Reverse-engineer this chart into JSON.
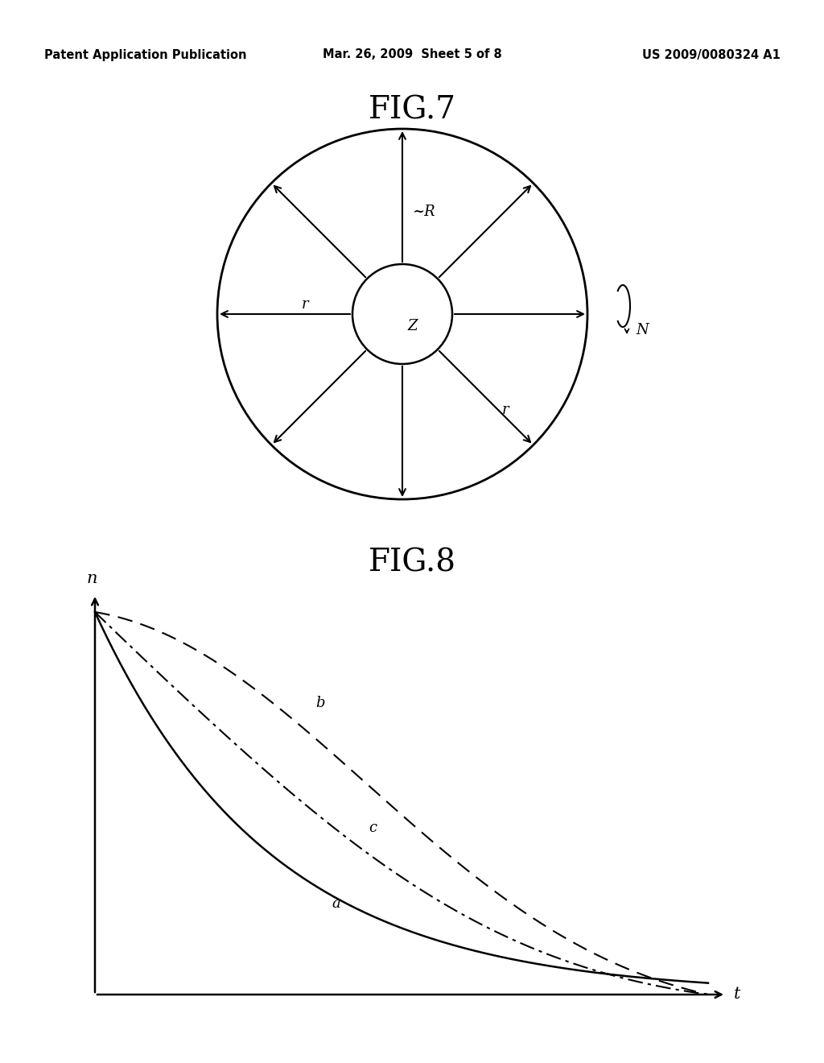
{
  "bg_color": "#ffffff",
  "header_left": "Patent Application Publication",
  "header_mid": "Mar. 26, 2009  Sheet 5 of 8",
  "header_right": "US 2009/0080324 A1",
  "fig7_title": "FIG.7",
  "fig8_title": "FIG.8",
  "fig7_label_Z": "Z",
  "fig7_label_R": "~R",
  "fig7_label_r1": "r",
  "fig7_label_r2": "r",
  "fig7_label_N": "N",
  "fig8_xlabel": "t",
  "fig8_ylabel": "n",
  "fig8_label_a": "a",
  "fig8_label_b": "b",
  "fig8_label_c": "c",
  "arrow_angles_deg": [
    90,
    45,
    0,
    315,
    270,
    225,
    180,
    135
  ],
  "line_color": "#000000",
  "text_color": "#000000"
}
